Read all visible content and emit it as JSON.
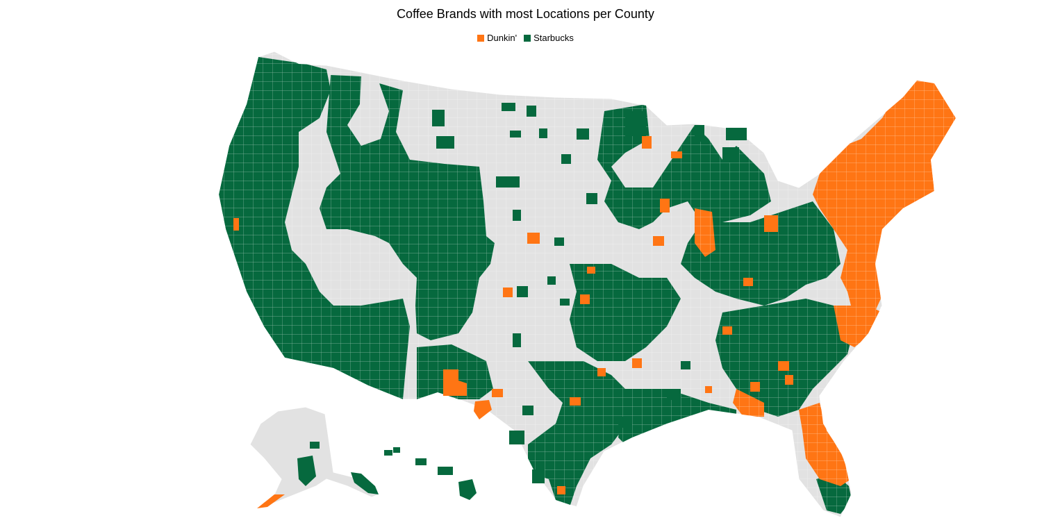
{
  "title": "Coffee  Brands with most Locations per County",
  "legend": [
    {
      "label": "Dunkin'",
      "color": "#ff7514"
    },
    {
      "label": "Starbucks",
      "color": "#06693e"
    }
  ],
  "colors": {
    "land": "#e2e2e2",
    "border": "#ffffff"
  },
  "regions": {
    "starbucks": [
      "West Coast and Southwest",
      "Mountain West",
      "Northern Plains (scattered)",
      "Upper Midwest",
      "Great Lakes",
      "Ohio Valley",
      "Southeast interior",
      "Gulf Coast",
      "Texas",
      "South Florida",
      "Hawaii",
      "Southern Alaska"
    ],
    "dunkin": [
      "New England",
      "Mid-Atlantic",
      "Illinois corridor",
      "Indiana / Kentucky",
      "Carolinas",
      "Georgia",
      "Florida Peninsula",
      "New Mexico",
      "West Texas",
      "Kansas",
      "Alaska Peninsula"
    ]
  }
}
